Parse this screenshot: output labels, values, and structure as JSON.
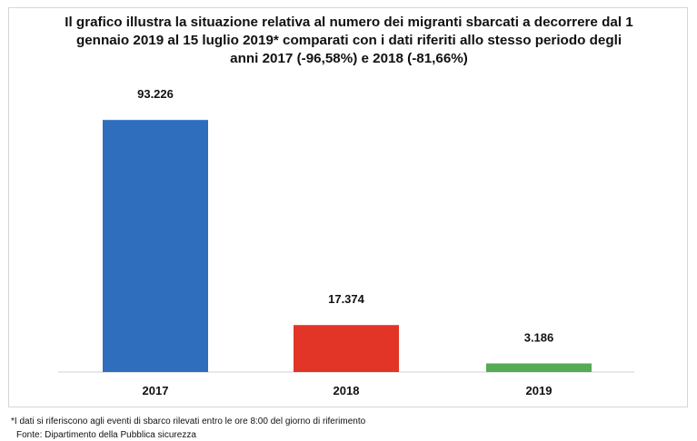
{
  "chart_data": {
    "type": "bar",
    "title": "Il grafico illustra la situazione relativa al numero dei migranti sbarcati a decorrere dal 1 gennaio 2019 al 15 luglio 2019* comparati con i dati riferiti allo stesso periodo degli anni 2017 (-96,58%) e 2018 (-81,66%)",
    "categories": [
      "2017",
      "2018",
      "2019"
    ],
    "values": [
      93226,
      17374,
      3186
    ],
    "value_labels": [
      "93.226",
      "17.374",
      "3.186"
    ],
    "colors": [
      "#2f6dbd",
      "#e23427",
      "#55aa55"
    ],
    "xlabel": "",
    "ylabel": "",
    "ylim": [
      0,
      100000
    ],
    "grid": false,
    "legend": "none"
  },
  "footnote": "*I dati si riferiscono agli eventi di sbarco rilevati entro le ore 8:00 del giorno di riferimento",
  "source": "Fonte: Dipartimento della Pubblica sicurezza"
}
